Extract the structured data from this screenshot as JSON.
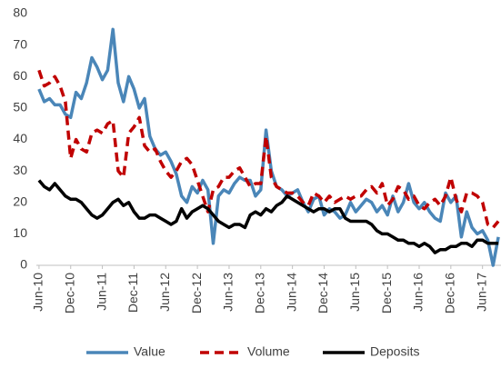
{
  "chart_data": {
    "type": "line",
    "categories": [
      "Jun-10",
      null,
      null,
      null,
      null,
      null,
      "Dec-10",
      null,
      null,
      null,
      null,
      null,
      "Jun-11",
      null,
      null,
      null,
      null,
      null,
      "Dec-11",
      null,
      null,
      null,
      null,
      null,
      "Jun-12",
      null,
      null,
      null,
      null,
      null,
      "Dec-12",
      null,
      null,
      null,
      null,
      null,
      "Jun-13",
      null,
      null,
      null,
      null,
      null,
      "Dec-13",
      null,
      null,
      null,
      null,
      null,
      "Jun-14",
      null,
      null,
      null,
      null,
      null,
      "Dec-14",
      null,
      null,
      null,
      null,
      null,
      "Jun-15",
      null,
      null,
      null,
      null,
      null,
      "Dec-15",
      null,
      null,
      null,
      null,
      null,
      "Jun-16",
      null,
      null,
      null,
      null,
      null,
      "Dec-16",
      null,
      null,
      null,
      null,
      null,
      "Jun-17",
      null,
      null,
      null
    ],
    "series": [
      {
        "name": "Value",
        "color": "#4a86b8",
        "dash": false,
        "values": [
          56,
          52,
          53,
          51,
          51,
          48,
          47,
          55,
          53,
          58,
          66,
          63,
          59,
          62,
          75,
          58,
          52,
          60,
          56,
          50,
          53,
          41,
          37,
          35,
          36,
          33,
          29,
          22,
          20,
          25,
          23,
          27,
          24,
          7,
          22,
          24,
          23,
          26,
          28,
          27,
          27,
          22,
          24,
          43,
          30,
          25,
          24,
          22,
          23,
          24,
          20,
          17,
          21,
          22,
          16,
          18,
          17,
          15,
          16,
          20,
          17,
          19,
          21,
          20,
          17,
          19,
          16,
          22,
          17,
          20,
          26,
          20,
          18,
          20,
          17,
          15,
          14,
          23,
          20,
          22,
          9,
          17,
          12,
          10,
          11,
          8,
          0,
          9
        ]
      },
      {
        "name": "Volume",
        "color": "#c00000",
        "dash": true,
        "values": [
          62,
          57,
          58,
          60,
          57,
          52,
          34,
          40,
          37,
          36,
          42,
          43,
          42,
          45,
          46,
          30,
          28,
          42,
          44,
          47,
          38,
          36,
          37,
          33,
          30,
          28,
          30,
          33,
          34,
          32,
          27,
          22,
          17,
          24,
          25,
          28,
          28,
          30,
          31,
          28,
          25,
          26,
          26,
          41,
          28,
          25,
          24,
          23,
          23,
          22,
          20,
          19,
          23,
          22,
          20,
          22,
          20,
          21,
          22,
          21,
          22,
          22,
          24,
          25,
          23,
          26,
          19,
          21,
          25,
          24,
          21,
          22,
          19,
          18,
          20,
          21,
          19,
          22,
          28,
          21,
          17,
          23,
          23,
          22,
          20,
          13,
          12,
          14
        ]
      },
      {
        "name": "Deposits",
        "color": "#000000",
        "dash": false,
        "values": [
          27,
          25,
          24,
          26,
          24,
          22,
          21,
          21,
          20,
          18,
          16,
          15,
          16,
          18,
          20,
          21,
          19,
          20,
          17,
          15,
          15,
          16,
          16,
          15,
          14,
          13,
          14,
          18,
          15,
          17,
          18,
          19,
          18,
          16,
          14,
          13,
          12,
          13,
          13,
          12,
          16,
          17,
          16,
          18,
          17,
          19,
          20,
          22,
          21,
          20,
          19,
          18,
          17,
          18,
          18,
          17,
          18,
          18,
          15,
          14,
          14,
          14,
          14,
          13,
          11,
          10,
          10,
          9,
          8,
          8,
          7,
          7,
          6,
          7,
          6,
          4,
          5,
          5,
          6,
          6,
          7,
          7,
          6,
          8,
          8,
          7,
          7,
          7
        ]
      }
    ],
    "ylim": [
      0,
      80
    ],
    "yticks": [
      0,
      10,
      20,
      30,
      40,
      50,
      60,
      70,
      80
    ],
    "grid": false,
    "legend": "bottom"
  }
}
